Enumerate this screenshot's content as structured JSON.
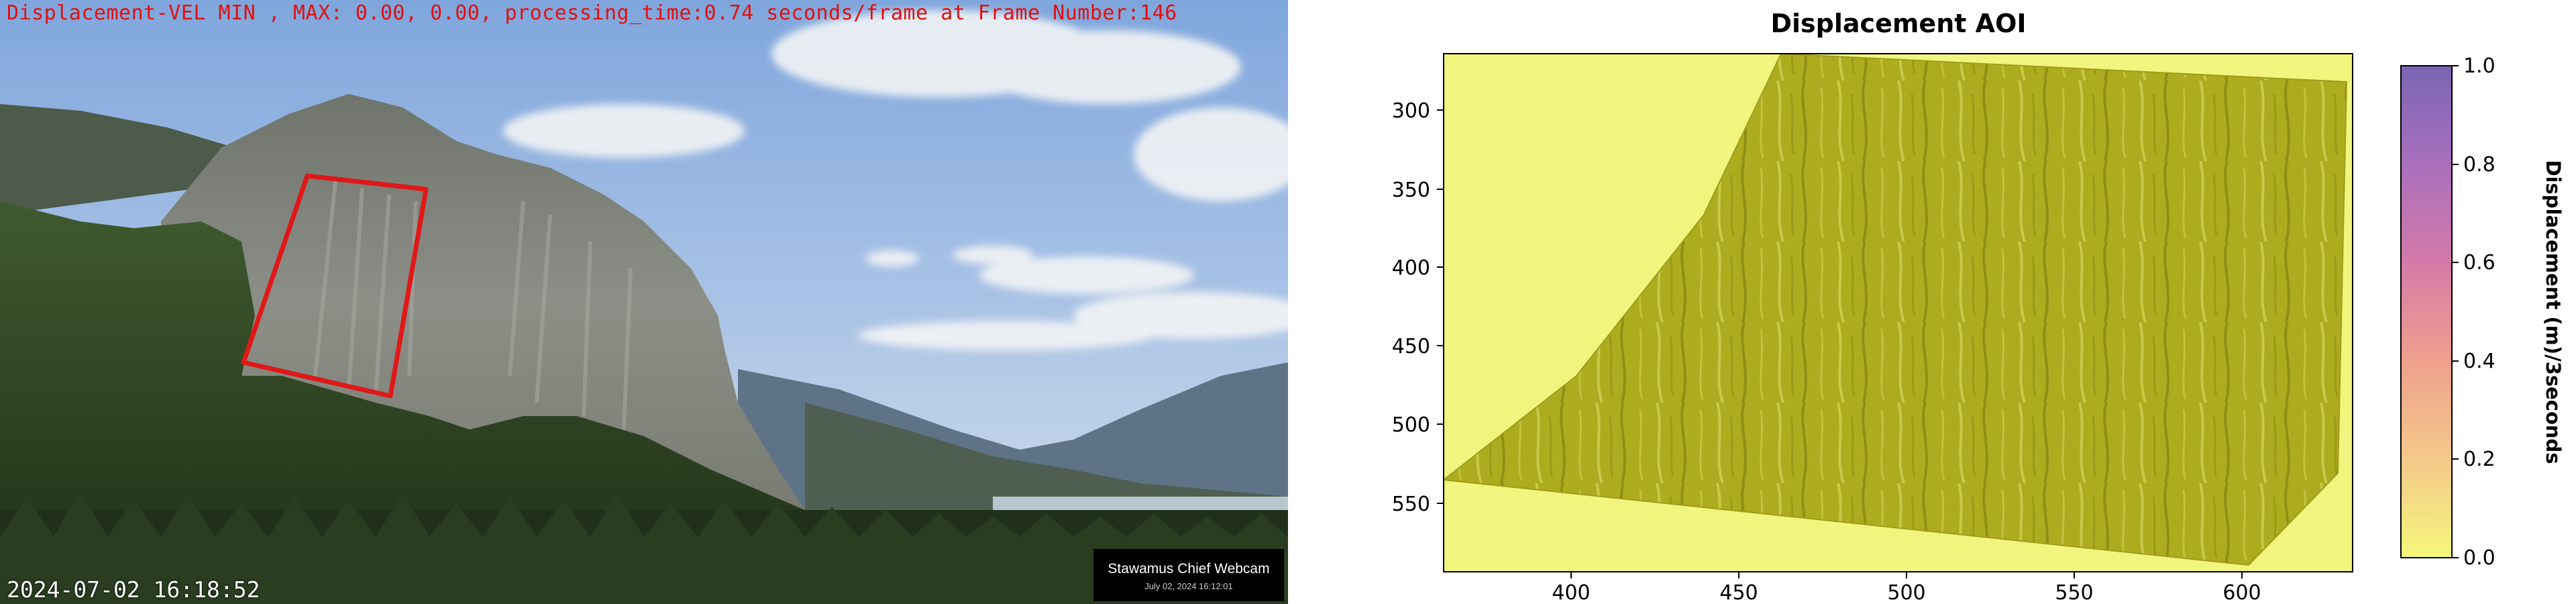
{
  "camera": {
    "overlay_header": "Displacement-VEL MIN , MAX: 0.00, 0.00, processing_time:0.74 seconds/frame at Frame Number:146",
    "timestamp": "2024-07-02 16:18:52",
    "badge_title": "Stawamus Chief Webcam",
    "badge_date": "July 02, 2024 16:12:01",
    "roi_color": "#e01818"
  },
  "plot": {
    "title": "Displacement AOI",
    "colorbar_label": "Displacement (m)/3seconds",
    "x_ticks": [
      "400",
      "450",
      "500",
      "550",
      "600"
    ],
    "y_ticks": [
      "300",
      "350",
      "400",
      "450",
      "500",
      "550"
    ],
    "colorbar_ticks": [
      "0.0",
      "0.2",
      "0.4",
      "0.6",
      "0.8",
      "1.0"
    ],
    "colormap": [
      "#f5f77a",
      "#f4c98a",
      "#eea08d",
      "#d47aa8",
      "#a96fbc",
      "#7a66b4"
    ],
    "background_color": "#f1f57d",
    "surface_color": "#acac1e"
  },
  "chart_data": {
    "type": "heatmap",
    "title": "Displacement AOI",
    "colorbar_label": "Displacement (m)/3seconds",
    "xlim": [
      362,
      633
    ],
    "ylim": [
      593,
      268
    ],
    "x_ticks": [
      400,
      450,
      500,
      550,
      600
    ],
    "y_ticks": [
      300,
      350,
      400,
      450,
      500,
      550
    ],
    "color_range": [
      0.0,
      1.0
    ],
    "displacement_min": 0.0,
    "displacement_max": 0.0
  }
}
